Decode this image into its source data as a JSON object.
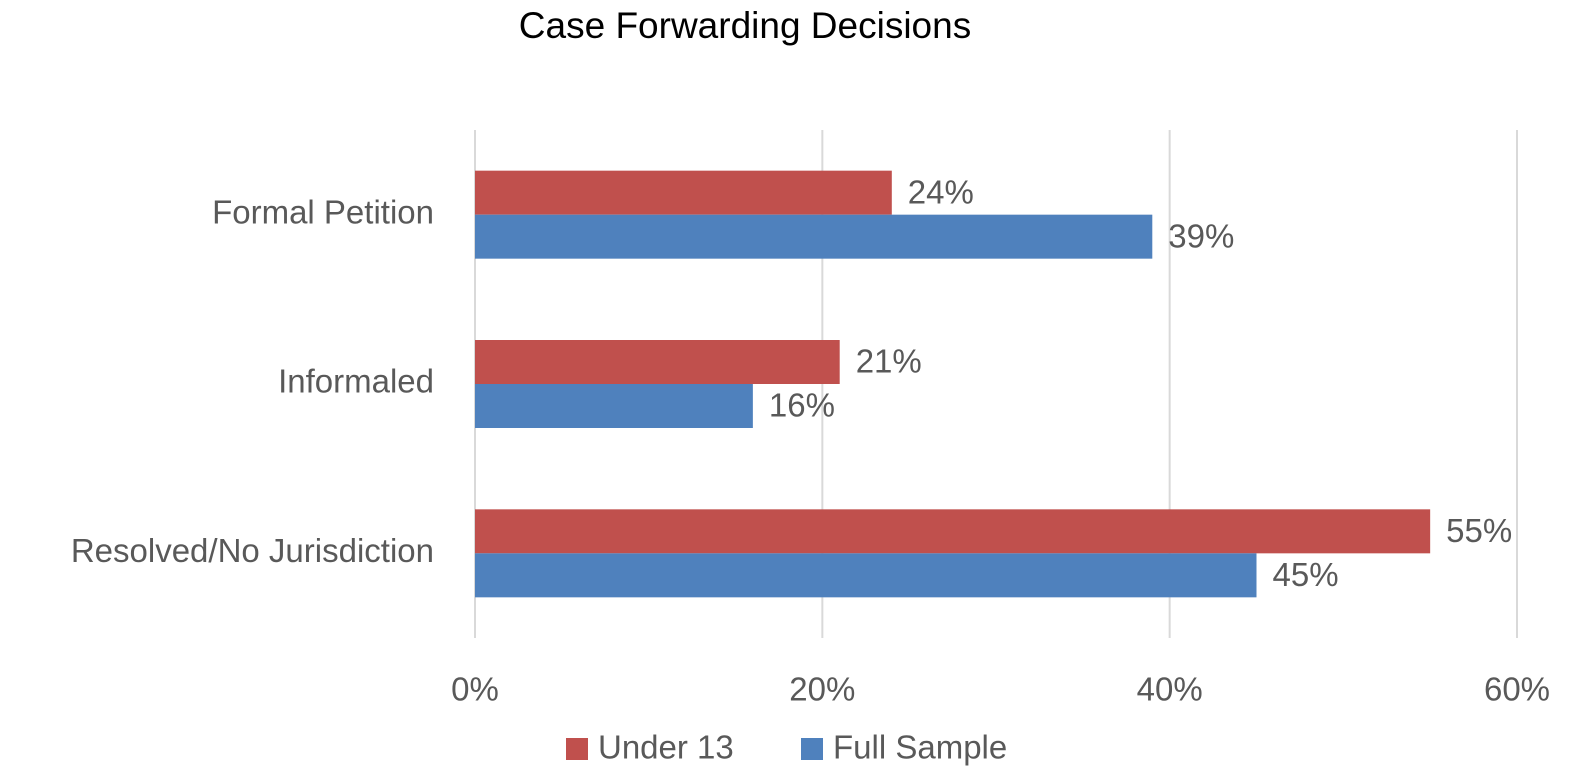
{
  "chart_data": {
    "type": "bar",
    "orientation": "horizontal",
    "title": "Case Forwarding Decisions",
    "categories": [
      "Formal Petition",
      "Informaled",
      "Resolved/No Jurisdiction"
    ],
    "series": [
      {
        "name": "Under 13",
        "color": "#c0504d",
        "values": [
          24,
          21,
          55
        ],
        "value_labels": [
          "24%",
          "21%",
          "55%"
        ]
      },
      {
        "name": "Full Sample",
        "color": "#4f81bd",
        "values": [
          39,
          16,
          45
        ],
        "value_labels": [
          "39%",
          "16%",
          "45%"
        ]
      }
    ],
    "xlim": [
      0,
      60
    ],
    "xticks": [
      {
        "value": 0,
        "label": "0%"
      },
      {
        "value": 20,
        "label": "20%"
      },
      {
        "value": 40,
        "label": "40%"
      },
      {
        "value": 60,
        "label": "60%"
      }
    ],
    "grid": true,
    "legend": "bottom"
  }
}
